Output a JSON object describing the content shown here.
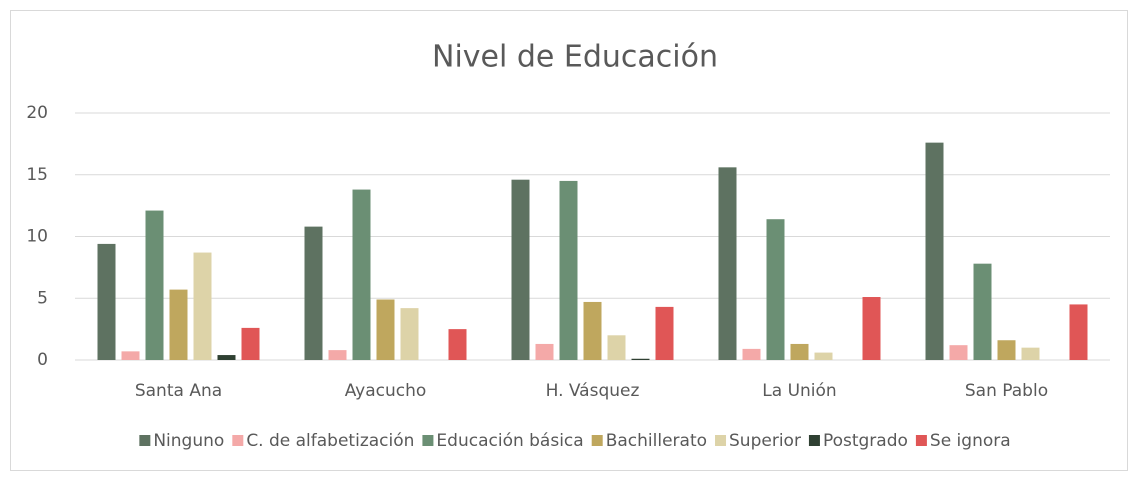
{
  "chart_data": {
    "type": "bar",
    "title": "Nivel de Educación",
    "categories": [
      "Santa Ana",
      "Ayacucho",
      "H. Vásquez",
      "La Unión",
      "San Pablo"
    ],
    "series": [
      {
        "name": "Ninguno",
        "color": "#5e7261",
        "values": [
          9.4,
          10.8,
          14.6,
          15.6,
          17.6
        ]
      },
      {
        "name": "C. de alfabetización",
        "color": "#f4a9a8",
        "values": [
          0.7,
          0.8,
          1.3,
          0.9,
          1.2
        ]
      },
      {
        "name": "Educación básica",
        "color": "#6b8f74",
        "values": [
          12.1,
          13.8,
          14.5,
          11.4,
          7.8
        ]
      },
      {
        "name": "Bachillerato",
        "color": "#bfa75e",
        "values": [
          5.7,
          4.9,
          4.7,
          1.3,
          1.6
        ]
      },
      {
        "name": "Superior",
        "color": "#ddd3a8",
        "values": [
          8.7,
          4.2,
          2.0,
          0.6,
          1.0
        ]
      },
      {
        "name": "Postgrado",
        "color": "#2f4032",
        "values": [
          0.4,
          0,
          0.1,
          0,
          0
        ]
      },
      {
        "name": "Se ignora",
        "color": "#e05656",
        "values": [
          2.6,
          2.5,
          4.3,
          5.1,
          4.5
        ]
      }
    ],
    "ylim": [
      0,
      20
    ],
    "yticks": [
      0,
      5,
      10,
      15,
      20
    ],
    "grid": true,
    "legend": "bottom"
  }
}
